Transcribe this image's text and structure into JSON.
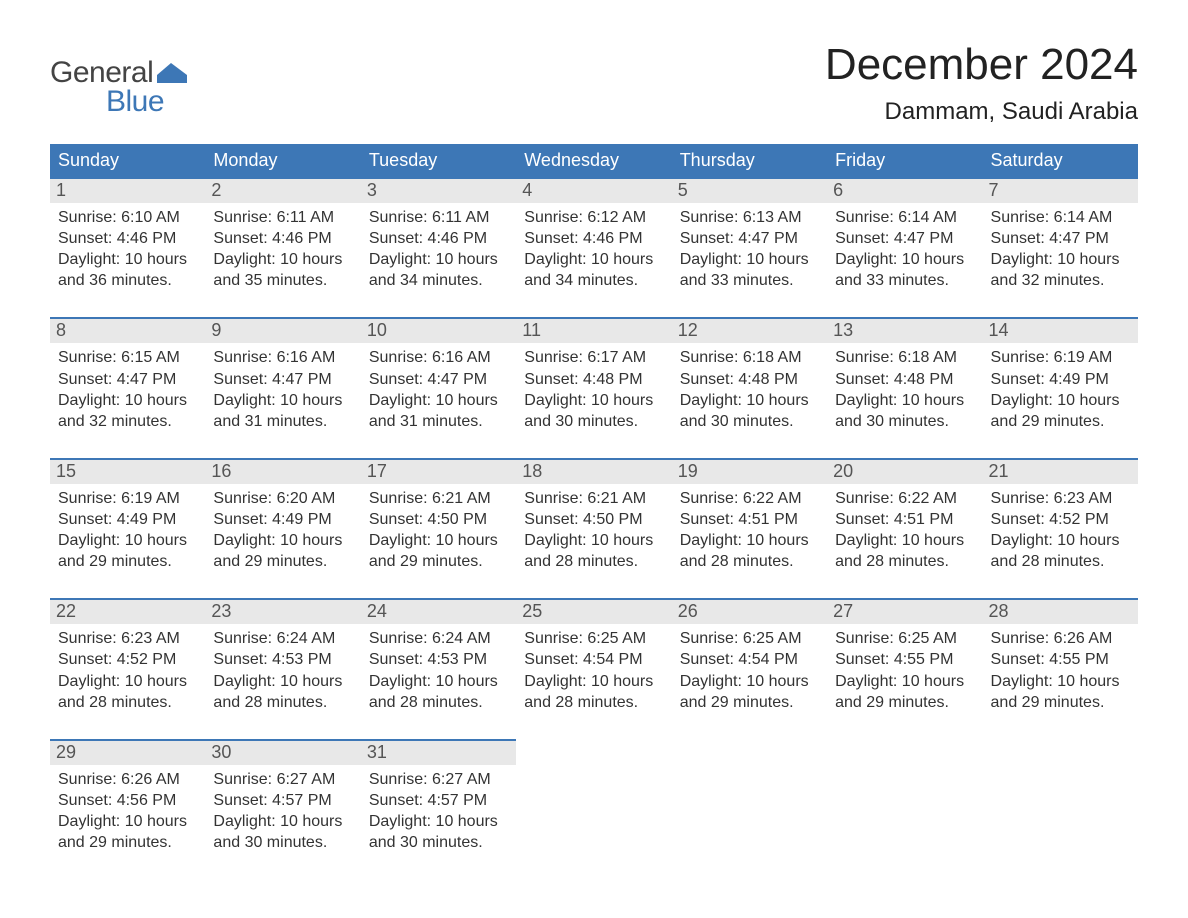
{
  "logo": {
    "line1": "General",
    "line2": "Blue",
    "accent_color": "#3d77b6"
  },
  "title": "December 2024",
  "location": "Dammam, Saudi Arabia",
  "colors": {
    "header_bg": "#3d77b6",
    "header_text": "#ffffff",
    "daynum_bg": "#e8e8e8",
    "daynum_text": "#555555",
    "body_text": "#333333",
    "rule": "#3d77b6"
  },
  "weekdays": [
    "Sunday",
    "Monday",
    "Tuesday",
    "Wednesday",
    "Thursday",
    "Friday",
    "Saturday"
  ],
  "weeks": [
    [
      {
        "n": "1",
        "sunrise": "Sunrise: 6:10 AM",
        "sunset": "Sunset: 4:46 PM",
        "d1": "Daylight: 10 hours",
        "d2": "and 36 minutes."
      },
      {
        "n": "2",
        "sunrise": "Sunrise: 6:11 AM",
        "sunset": "Sunset: 4:46 PM",
        "d1": "Daylight: 10 hours",
        "d2": "and 35 minutes."
      },
      {
        "n": "3",
        "sunrise": "Sunrise: 6:11 AM",
        "sunset": "Sunset: 4:46 PM",
        "d1": "Daylight: 10 hours",
        "d2": "and 34 minutes."
      },
      {
        "n": "4",
        "sunrise": "Sunrise: 6:12 AM",
        "sunset": "Sunset: 4:46 PM",
        "d1": "Daylight: 10 hours",
        "d2": "and 34 minutes."
      },
      {
        "n": "5",
        "sunrise": "Sunrise: 6:13 AM",
        "sunset": "Sunset: 4:47 PM",
        "d1": "Daylight: 10 hours",
        "d2": "and 33 minutes."
      },
      {
        "n": "6",
        "sunrise": "Sunrise: 6:14 AM",
        "sunset": "Sunset: 4:47 PM",
        "d1": "Daylight: 10 hours",
        "d2": "and 33 minutes."
      },
      {
        "n": "7",
        "sunrise": "Sunrise: 6:14 AM",
        "sunset": "Sunset: 4:47 PM",
        "d1": "Daylight: 10 hours",
        "d2": "and 32 minutes."
      }
    ],
    [
      {
        "n": "8",
        "sunrise": "Sunrise: 6:15 AM",
        "sunset": "Sunset: 4:47 PM",
        "d1": "Daylight: 10 hours",
        "d2": "and 32 minutes."
      },
      {
        "n": "9",
        "sunrise": "Sunrise: 6:16 AM",
        "sunset": "Sunset: 4:47 PM",
        "d1": "Daylight: 10 hours",
        "d2": "and 31 minutes."
      },
      {
        "n": "10",
        "sunrise": "Sunrise: 6:16 AM",
        "sunset": "Sunset: 4:47 PM",
        "d1": "Daylight: 10 hours",
        "d2": "and 31 minutes."
      },
      {
        "n": "11",
        "sunrise": "Sunrise: 6:17 AM",
        "sunset": "Sunset: 4:48 PM",
        "d1": "Daylight: 10 hours",
        "d2": "and 30 minutes."
      },
      {
        "n": "12",
        "sunrise": "Sunrise: 6:18 AM",
        "sunset": "Sunset: 4:48 PM",
        "d1": "Daylight: 10 hours",
        "d2": "and 30 minutes."
      },
      {
        "n": "13",
        "sunrise": "Sunrise: 6:18 AM",
        "sunset": "Sunset: 4:48 PM",
        "d1": "Daylight: 10 hours",
        "d2": "and 30 minutes."
      },
      {
        "n": "14",
        "sunrise": "Sunrise: 6:19 AM",
        "sunset": "Sunset: 4:49 PM",
        "d1": "Daylight: 10 hours",
        "d2": "and 29 minutes."
      }
    ],
    [
      {
        "n": "15",
        "sunrise": "Sunrise: 6:19 AM",
        "sunset": "Sunset: 4:49 PM",
        "d1": "Daylight: 10 hours",
        "d2": "and 29 minutes."
      },
      {
        "n": "16",
        "sunrise": "Sunrise: 6:20 AM",
        "sunset": "Sunset: 4:49 PM",
        "d1": "Daylight: 10 hours",
        "d2": "and 29 minutes."
      },
      {
        "n": "17",
        "sunrise": "Sunrise: 6:21 AM",
        "sunset": "Sunset: 4:50 PM",
        "d1": "Daylight: 10 hours",
        "d2": "and 29 minutes."
      },
      {
        "n": "18",
        "sunrise": "Sunrise: 6:21 AM",
        "sunset": "Sunset: 4:50 PM",
        "d1": "Daylight: 10 hours",
        "d2": "and 28 minutes."
      },
      {
        "n": "19",
        "sunrise": "Sunrise: 6:22 AM",
        "sunset": "Sunset: 4:51 PM",
        "d1": "Daylight: 10 hours",
        "d2": "and 28 minutes."
      },
      {
        "n": "20",
        "sunrise": "Sunrise: 6:22 AM",
        "sunset": "Sunset: 4:51 PM",
        "d1": "Daylight: 10 hours",
        "d2": "and 28 minutes."
      },
      {
        "n": "21",
        "sunrise": "Sunrise: 6:23 AM",
        "sunset": "Sunset: 4:52 PM",
        "d1": "Daylight: 10 hours",
        "d2": "and 28 minutes."
      }
    ],
    [
      {
        "n": "22",
        "sunrise": "Sunrise: 6:23 AM",
        "sunset": "Sunset: 4:52 PM",
        "d1": "Daylight: 10 hours",
        "d2": "and 28 minutes."
      },
      {
        "n": "23",
        "sunrise": "Sunrise: 6:24 AM",
        "sunset": "Sunset: 4:53 PM",
        "d1": "Daylight: 10 hours",
        "d2": "and 28 minutes."
      },
      {
        "n": "24",
        "sunrise": "Sunrise: 6:24 AM",
        "sunset": "Sunset: 4:53 PM",
        "d1": "Daylight: 10 hours",
        "d2": "and 28 minutes."
      },
      {
        "n": "25",
        "sunrise": "Sunrise: 6:25 AM",
        "sunset": "Sunset: 4:54 PM",
        "d1": "Daylight: 10 hours",
        "d2": "and 28 minutes."
      },
      {
        "n": "26",
        "sunrise": "Sunrise: 6:25 AM",
        "sunset": "Sunset: 4:54 PM",
        "d1": "Daylight: 10 hours",
        "d2": "and 29 minutes."
      },
      {
        "n": "27",
        "sunrise": "Sunrise: 6:25 AM",
        "sunset": "Sunset: 4:55 PM",
        "d1": "Daylight: 10 hours",
        "d2": "and 29 minutes."
      },
      {
        "n": "28",
        "sunrise": "Sunrise: 6:26 AM",
        "sunset": "Sunset: 4:55 PM",
        "d1": "Daylight: 10 hours",
        "d2": "and 29 minutes."
      }
    ],
    [
      {
        "n": "29",
        "sunrise": "Sunrise: 6:26 AM",
        "sunset": "Sunset: 4:56 PM",
        "d1": "Daylight: 10 hours",
        "d2": "and 29 minutes."
      },
      {
        "n": "30",
        "sunrise": "Sunrise: 6:27 AM",
        "sunset": "Sunset: 4:57 PM",
        "d1": "Daylight: 10 hours",
        "d2": "and 30 minutes."
      },
      {
        "n": "31",
        "sunrise": "Sunrise: 6:27 AM",
        "sunset": "Sunset: 4:57 PM",
        "d1": "Daylight: 10 hours",
        "d2": "and 30 minutes."
      },
      null,
      null,
      null,
      null
    ]
  ]
}
